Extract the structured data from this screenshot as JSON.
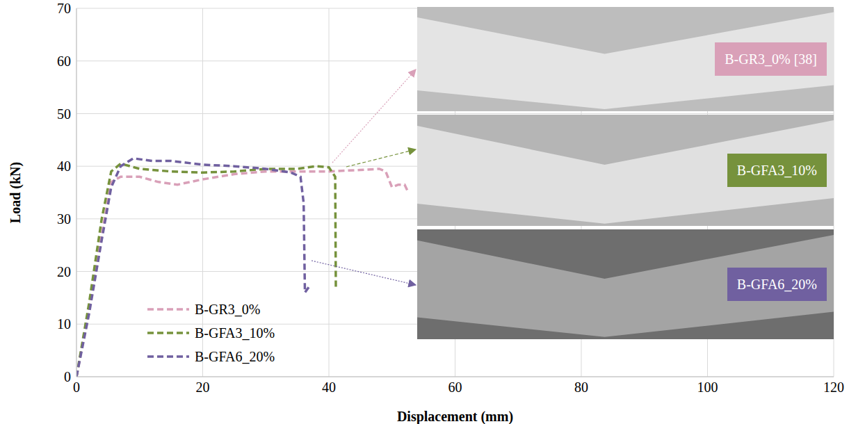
{
  "chart_data": {
    "type": "line",
    "x_label": "Displacement (mm)",
    "y_label": "Load (kN)",
    "xlim": [
      0,
      120
    ],
    "xticks": [
      0,
      20,
      40,
      60,
      80,
      100,
      120
    ],
    "ylim": [
      0,
      70
    ],
    "yticks": [
      0,
      10,
      20,
      30,
      40,
      50,
      60,
      70
    ],
    "grid": true,
    "legend": "lower left",
    "line_style": "dashed",
    "series": [
      {
        "name": "B-GR3_0%",
        "color": "#d9a0b8",
        "x": [
          0,
          2,
          4,
          5.5,
          7,
          10,
          13,
          16,
          20,
          25,
          30,
          35,
          40,
          45,
          48,
          49,
          50,
          51,
          52,
          52.6
        ],
        "values": [
          0,
          13,
          27,
          37,
          38,
          38,
          37,
          36.5,
          37.5,
          38.5,
          39,
          39,
          39,
          39.3,
          39.5,
          39,
          36,
          36.5,
          36.5,
          35
        ]
      },
      {
        "name": "B-GFA3_10%",
        "color": "#76923c",
        "x": [
          0,
          2,
          4,
          5.5,
          7,
          10,
          15,
          20,
          25,
          30,
          35,
          38,
          40,
          41,
          41.1
        ],
        "values": [
          0,
          14,
          30,
          39,
          40.5,
          39.5,
          39,
          38.8,
          39,
          39.5,
          39.5,
          40,
          39.8,
          38,
          17
        ]
      },
      {
        "name": "B-GFA6_20%",
        "color": "#7060a0",
        "x": [
          0,
          2,
          4,
          5.5,
          7,
          9,
          12,
          15,
          20,
          25,
          30,
          34,
          35.5,
          36,
          36.2,
          36.8
        ],
        "values": [
          0,
          12,
          26,
          36,
          40,
          41.5,
          41,
          41,
          40.3,
          40,
          39.5,
          38.8,
          38,
          33,
          16,
          17
        ]
      }
    ],
    "annotations": [
      {
        "text": "B-GR3_0% [38]",
        "color": "#d9a0b8"
      },
      {
        "text": "B-GFA3_10%",
        "color": "#76923c"
      },
      {
        "text": "B-GFA6_20%",
        "color": "#7060a0"
      }
    ]
  }
}
